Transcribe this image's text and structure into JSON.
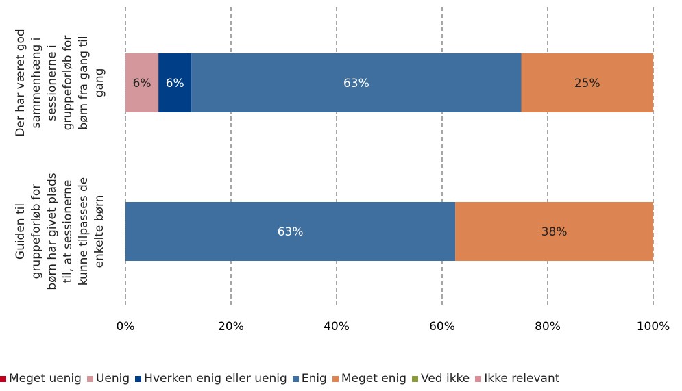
{
  "chart_data": {
    "type": "stacked-bar-horizontal",
    "categories": [
      "Der har været god sammenhæng i sessionerne i gruppeforløb for børn fra gang til gang",
      "Guiden til gruppeforløb for børn har givet plads til, at sessionerne kunne tilpasses de enkelte børn"
    ],
    "series": [
      {
        "name": "Meget uenig",
        "color": "#c0001f",
        "values": [
          0,
          0
        ],
        "value_labels": [
          null,
          null
        ]
      },
      {
        "name": "Uenig",
        "color": "#d4979b",
        "values": [
          6.25,
          0
        ],
        "value_labels": [
          "6%",
          null
        ]
      },
      {
        "name": "Hverken enig eller uenig",
        "color": "#003f88",
        "values": [
          6.25,
          0
        ],
        "value_labels": [
          "6%",
          null
        ]
      },
      {
        "name": "Enig",
        "color": "#3e6f9e",
        "values": [
          62.5,
          62.5
        ],
        "value_labels": [
          "63%",
          "63%"
        ]
      },
      {
        "name": "Meget enig",
        "color": "#dc8452",
        "values": [
          25,
          37.5
        ],
        "value_labels": [
          "25%",
          "38%"
        ]
      },
      {
        "name": "Ved ikke",
        "color": "#8c9a3c",
        "values": [
          0,
          0
        ],
        "value_labels": [
          null,
          null
        ]
      },
      {
        "name": "Ikke relevant",
        "color": "#d98f9a",
        "values": [
          0,
          0
        ],
        "value_labels": [
          null,
          null
        ]
      }
    ],
    "xlim": [
      0,
      100
    ],
    "xticks": [
      {
        "value": 0,
        "label": "0%"
      },
      {
        "value": 20,
        "label": "20%"
      },
      {
        "value": 40,
        "label": "40%"
      },
      {
        "value": 60,
        "label": "60%"
      },
      {
        "value": 80,
        "label": "80%"
      },
      {
        "value": 100,
        "label": "100%"
      }
    ],
    "grid": true,
    "legend": "bottom"
  }
}
